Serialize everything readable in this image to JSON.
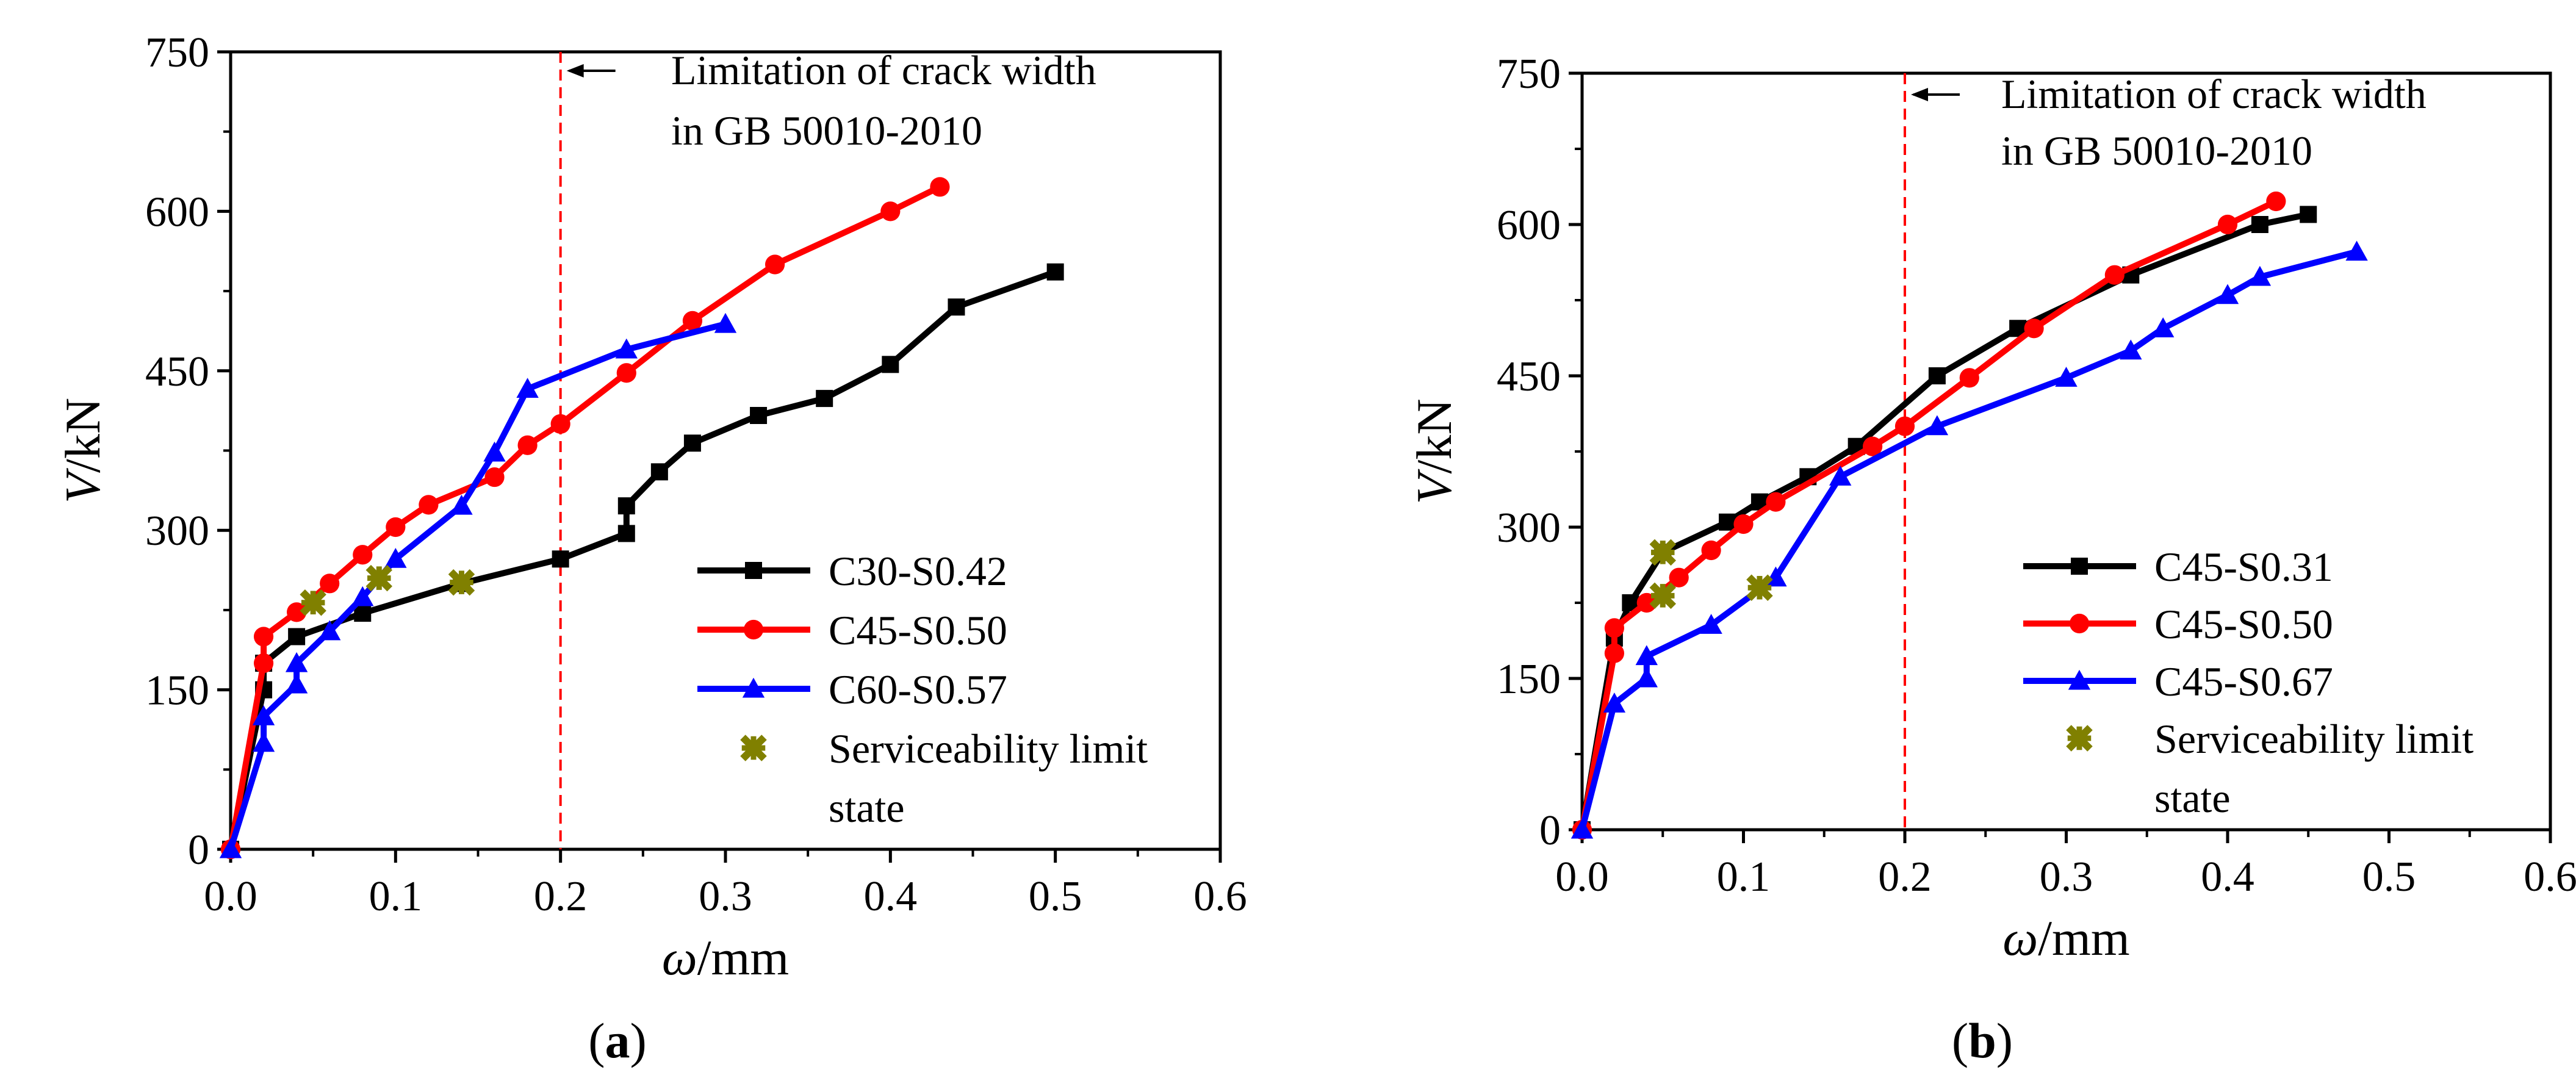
{
  "figure": {
    "label_a": "(a)",
    "label_b": "(b)"
  },
  "chart_data": [
    {
      "panel": "a",
      "type": "line",
      "xlabel_sym": "ω",
      "xlabel_unit": "/mm",
      "ylabel_sym": "V",
      "ylabel_unit": "/kN",
      "xlim": [
        0,
        0.6
      ],
      "ylim": [
        0,
        750
      ],
      "xticks": [
        0.0,
        0.1,
        0.2,
        0.3,
        0.4,
        0.5,
        0.6
      ],
      "xtick_labels": [
        "0.0",
        "0.1",
        "0.2",
        "0.3",
        "0.4",
        "0.5",
        "0.6"
      ],
      "yticks": [
        0,
        150,
        300,
        450,
        600,
        750
      ],
      "ytick_labels": [
        "0",
        "150",
        "300",
        "450",
        "600",
        "750"
      ],
      "grid": false,
      "legend_position": "bottom-right",
      "annotation": {
        "x": 0.2,
        "line1": "Limitation of crack width",
        "line2": "in GB 50010-2010"
      },
      "series": [
        {
          "name": "C30-S0.42",
          "color": "#000000",
          "marker": "square",
          "points": [
            [
              0,
              0
            ],
            [
              0.02,
              150
            ],
            [
              0.02,
              175
            ],
            [
              0.04,
              200
            ],
            [
              0.08,
              222
            ],
            [
              0.14,
              250
            ],
            [
              0.2,
              273
            ],
            [
              0.24,
              297
            ],
            [
              0.24,
              323
            ],
            [
              0.26,
              355
            ],
            [
              0.28,
              382
            ],
            [
              0.32,
              408
            ],
            [
              0.36,
              424
            ],
            [
              0.4,
              456
            ],
            [
              0.44,
              510
            ],
            [
              0.5,
              543
            ]
          ]
        },
        {
          "name": "C45-S0.50",
          "color": "#ff0000",
          "marker": "circle",
          "points": [
            [
              0,
              0
            ],
            [
              0.02,
              175
            ],
            [
              0.02,
              200
            ],
            [
              0.04,
              223
            ],
            [
              0.06,
              250
            ],
            [
              0.08,
              277
            ],
            [
              0.1,
              303
            ],
            [
              0.12,
              324
            ],
            [
              0.16,
              350
            ],
            [
              0.18,
              380
            ],
            [
              0.2,
              400
            ],
            [
              0.24,
              448
            ],
            [
              0.28,
              497
            ],
            [
              0.33,
              550
            ],
            [
              0.4,
              600
            ],
            [
              0.43,
              623
            ]
          ]
        },
        {
          "name": "C60-S0.57",
          "color": "#0000ff",
          "marker": "triangle",
          "points": [
            [
              0,
              0
            ],
            [
              0.02,
              100
            ],
            [
              0.02,
              125
            ],
            [
              0.04,
              155
            ],
            [
              0.04,
              175
            ],
            [
              0.06,
              205
            ],
            [
              0.08,
              237
            ],
            [
              0.1,
              273
            ],
            [
              0.14,
              323
            ],
            [
              0.16,
              373
            ],
            [
              0.18,
              433
            ],
            [
              0.24,
              470
            ],
            [
              0.3,
              494
            ]
          ]
        },
        {
          "name": "Serviceability limit",
          "name_line2": "state",
          "color": "#808000",
          "marker": "cross",
          "points": [
            [
              0.05,
              232
            ],
            [
              0.09,
              255
            ],
            [
              0.14,
              251
            ]
          ]
        }
      ]
    },
    {
      "panel": "b",
      "type": "line",
      "xlabel_sym": "ω",
      "xlabel_unit": "/mm",
      "ylabel_sym": "V",
      "ylabel_unit": "/kN",
      "xlim": [
        0,
        0.6
      ],
      "ylim": [
        0,
        750
      ],
      "xticks": [
        0.0,
        0.1,
        0.2,
        0.3,
        0.4,
        0.5,
        0.6
      ],
      "xtick_labels": [
        "0.0",
        "0.1",
        "0.2",
        "0.3",
        "0.4",
        "0.5",
        "0.6"
      ],
      "yticks": [
        0,
        150,
        300,
        450,
        600,
        750
      ],
      "ytick_labels": [
        "0",
        "150",
        "300",
        "450",
        "600",
        "750"
      ],
      "grid": false,
      "legend_position": "bottom-right",
      "annotation": {
        "x": 0.2,
        "line1": "Limitation of crack width",
        "line2": "in GB 50010-2010"
      },
      "series": [
        {
          "name": "C45-S0.31",
          "color": "#000000",
          "marker": "square",
          "points": [
            [
              0,
              0
            ],
            [
              0.02,
              190
            ],
            [
              0.03,
              225
            ],
            [
              0.05,
              275
            ],
            [
              0.09,
              305
            ],
            [
              0.11,
              325
            ],
            [
              0.14,
              350
            ],
            [
              0.17,
              380
            ],
            [
              0.22,
              450
            ],
            [
              0.27,
              497
            ],
            [
              0.34,
              550
            ],
            [
              0.42,
              600
            ],
            [
              0.45,
              610
            ]
          ]
        },
        {
          "name": "C45-S0.50",
          "color": "#ff0000",
          "marker": "circle",
          "points": [
            [
              0,
              0
            ],
            [
              0.02,
              175
            ],
            [
              0.02,
              200
            ],
            [
              0.04,
              225
            ],
            [
              0.06,
              250
            ],
            [
              0.08,
              277
            ],
            [
              0.1,
              303
            ],
            [
              0.12,
              325
            ],
            [
              0.18,
              380
            ],
            [
              0.2,
              400
            ],
            [
              0.24,
              448
            ],
            [
              0.28,
              497
            ],
            [
              0.33,
              550
            ],
            [
              0.4,
              600
            ],
            [
              0.43,
              623
            ]
          ]
        },
        {
          "name": "C45-S0.67",
          "color": "#0000ff",
          "marker": "triangle",
          "points": [
            [
              0,
              0
            ],
            [
              0.02,
              125
            ],
            [
              0.04,
              150
            ],
            [
              0.04,
              172
            ],
            [
              0.08,
              203
            ],
            [
              0.12,
              250
            ],
            [
              0.16,
              350
            ],
            [
              0.22,
              400
            ],
            [
              0.3,
              448
            ],
            [
              0.34,
              475
            ],
            [
              0.36,
              497
            ],
            [
              0.4,
              530
            ],
            [
              0.42,
              548
            ],
            [
              0.48,
              573
            ]
          ]
        },
        {
          "name": "Serviceability limit",
          "name_line2": "state",
          "color": "#808000",
          "marker": "cross",
          "points": [
            [
              0.05,
              275
            ],
            [
              0.05,
              232
            ],
            [
              0.11,
              240
            ]
          ]
        }
      ]
    }
  ]
}
